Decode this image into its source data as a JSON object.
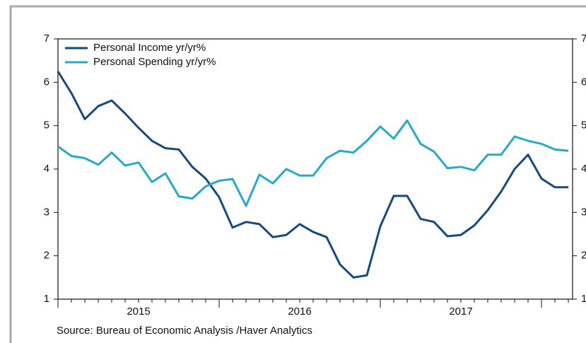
{
  "chart_data": {
    "type": "line",
    "categories": [
      null,
      null,
      null,
      null,
      null,
      null,
      "2015",
      null,
      null,
      null,
      null,
      null,
      null,
      null,
      null,
      null,
      null,
      null,
      "2016",
      null,
      null,
      null,
      null,
      null,
      null,
      null,
      null,
      null,
      null,
      null,
      "2017",
      null,
      null,
      null,
      null,
      null,
      null,
      null,
      null
    ],
    "series": [
      {
        "name": "Personal Income  yr/yr%",
        "color": "#174a7c",
        "values": [
          6.25,
          5.75,
          5.15,
          5.45,
          5.58,
          5.28,
          4.95,
          4.65,
          4.48,
          4.45,
          4.05,
          3.78,
          3.35,
          2.65,
          2.78,
          2.73,
          2.43,
          2.48,
          2.73,
          2.55,
          2.43,
          1.8,
          1.5,
          1.55,
          2.68,
          3.38,
          3.38,
          2.85,
          2.78,
          2.45,
          2.48,
          2.7,
          3.05,
          3.48,
          4.0,
          4.33,
          3.78,
          3.58,
          3.58
        ]
      },
      {
        "name": "Personal Spending yr/yr%",
        "color": "#2aa8c8",
        "values": [
          4.52,
          4.3,
          4.25,
          4.1,
          4.38,
          4.08,
          4.15,
          3.7,
          3.9,
          3.37,
          3.32,
          3.6,
          3.73,
          3.77,
          3.15,
          3.87,
          3.67,
          4.0,
          3.85,
          3.85,
          4.25,
          4.42,
          4.38,
          4.65,
          4.98,
          4.7,
          5.12,
          4.58,
          4.4,
          4.02,
          4.05,
          3.97,
          4.33,
          4.33,
          4.75,
          4.65,
          4.58,
          4.45,
          4.42
        ]
      }
    ],
    "ylim": [
      1,
      7
    ],
    "yticks": [
      1,
      2,
      3,
      4,
      5,
      6,
      7
    ],
    "y2lim": [
      1,
      7
    ],
    "y2ticks": [
      1,
      2,
      3,
      4,
      5,
      6,
      7
    ],
    "legend": "upper left",
    "annotations": [
      "Source:  Bureau of Economic Analysis /Haver Analytics"
    ]
  }
}
